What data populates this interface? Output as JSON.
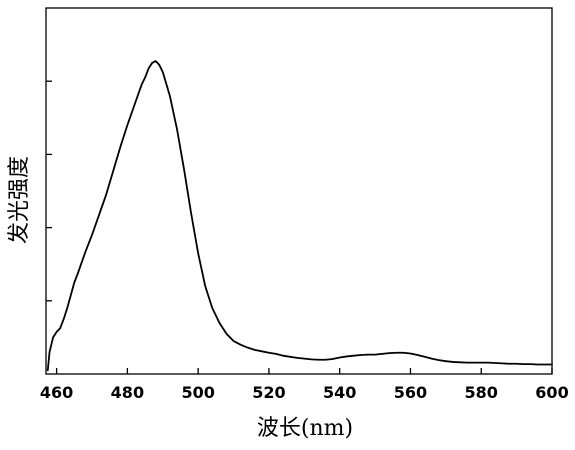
{
  "chart_data": {
    "type": "line",
    "title": "",
    "xlabel": "波长(nm)",
    "ylabel": "发光强度",
    "xlim": [
      457,
      600
    ],
    "ylim": [
      0,
      1.0
    ],
    "x_ticks": [
      460,
      480,
      500,
      520,
      540,
      560,
      580,
      600
    ],
    "x_tick_labels": [
      "460",
      "480",
      "500",
      "520",
      "540",
      "560",
      "580",
      "600"
    ],
    "y_ticks": [
      0.2,
      0.4,
      0.6,
      0.8
    ],
    "y_tick_labels_shown": false,
    "grid": false,
    "legend": "none",
    "line_color": "#000000",
    "series": [
      {
        "x": [
          457.5,
          458,
          459,
          460,
          461,
          462,
          463,
          464,
          465,
          466,
          468,
          470,
          472,
          474,
          476,
          478,
          480,
          482,
          484,
          485,
          486,
          487,
          488,
          489,
          490,
          492,
          494,
          496,
          498,
          500,
          502,
          504,
          506,
          508,
          510,
          512,
          514,
          516,
          518,
          520,
          522,
          524,
          526,
          528,
          530,
          532,
          534,
          536,
          538,
          540,
          542,
          544,
          546,
          548,
          550,
          552,
          554,
          556,
          558,
          560,
          562,
          564,
          566,
          568,
          570,
          572,
          574,
          576,
          578,
          580,
          582,
          584,
          586,
          588,
          590,
          592,
          594,
          596,
          598,
          600
        ],
        "y": [
          0.01,
          0.06,
          0.1,
          0.115,
          0.125,
          0.15,
          0.18,
          0.215,
          0.25,
          0.275,
          0.33,
          0.38,
          0.435,
          0.49,
          0.555,
          0.62,
          0.68,
          0.735,
          0.79,
          0.81,
          0.835,
          0.85,
          0.855,
          0.845,
          0.825,
          0.76,
          0.67,
          0.56,
          0.44,
          0.33,
          0.24,
          0.18,
          0.14,
          0.11,
          0.09,
          0.08,
          0.072,
          0.066,
          0.062,
          0.058,
          0.055,
          0.05,
          0.047,
          0.044,
          0.042,
          0.04,
          0.039,
          0.039,
          0.041,
          0.045,
          0.048,
          0.05,
          0.052,
          0.053,
          0.053,
          0.055,
          0.057,
          0.058,
          0.058,
          0.056,
          0.052,
          0.047,
          0.042,
          0.038,
          0.035,
          0.033,
          0.032,
          0.031,
          0.031,
          0.031,
          0.031,
          0.03,
          0.029,
          0.028,
          0.028,
          0.027,
          0.027,
          0.026,
          0.026,
          0.026
        ]
      }
    ]
  }
}
